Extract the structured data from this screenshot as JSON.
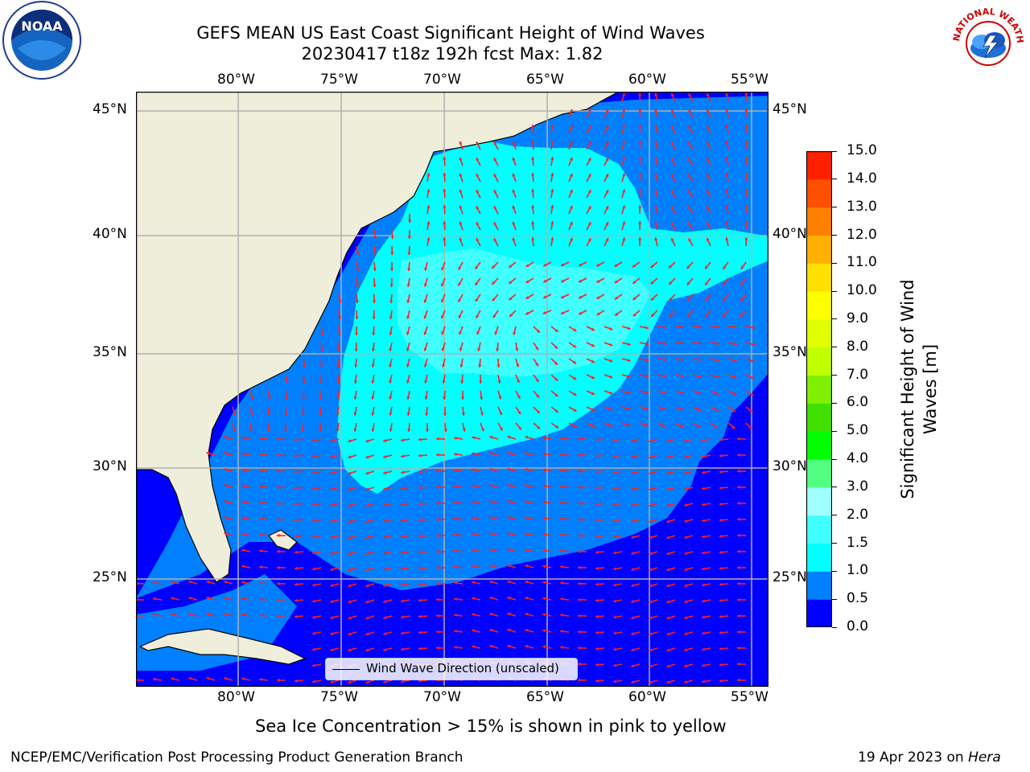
{
  "title_line1": "GEFS MEAN US East Coast Significant Height of Wind Waves",
  "title_line2": "20230417 t18z 192h fcst   Max: 1.82",
  "lon_labels": [
    "80°W",
    "75°W",
    "70°W",
    "65°W",
    "60°W",
    "55°W"
  ],
  "lat_labels": [
    "45°N",
    "40°N",
    "35°N",
    "30°N",
    "25°N"
  ],
  "legend_label": "Wind Wave Direction (unscaled)",
  "colorbar": {
    "label_line1": "Significant Height of Wind",
    "label_line2": "Waves [m]",
    "ticks": [
      "15.0",
      "14.0",
      "13.0",
      "12.0",
      "11.0",
      "10.0",
      "9.0",
      "8.0",
      "7.0",
      "6.0",
      "5.0",
      "4.0",
      "3.0",
      "2.0",
      "1.5",
      "1.0",
      "0.5",
      "0.0"
    ],
    "colors_bottom_to_top": [
      "#0000ff",
      "#0080ff",
      "#00ffff",
      "#40ffff",
      "#a0ffff",
      "#50ff80",
      "#00ff00",
      "#40e000",
      "#80f000",
      "#c0ff00",
      "#e0ff00",
      "#ffff00",
      "#ffe000",
      "#ffb000",
      "#ff8000",
      "#ff5000",
      "#ff2000"
    ]
  },
  "map_colors": {
    "land": "#efeedb",
    "wave_0_0_5": "#0000ff",
    "wave_0_5_1_0": "#0080ff",
    "wave_1_0_1_5": "#00ffff",
    "wave_1_5_2_0": "#40ffff",
    "arrow": "#ff2020",
    "grid": "#b0b0b0"
  },
  "caption": "Sea Ice Concentration > 15% is shown in pink to yellow",
  "footer_left": "NCEP/EMC/Verification Post Processing Product Generation Branch",
  "footer_right_date": "19 Apr 2023 on ",
  "footer_right_machine": "Hera",
  "logos": {
    "noaa_text": "NOAA",
    "nws_text": "NATIONAL WEATHER SERVICE"
  }
}
